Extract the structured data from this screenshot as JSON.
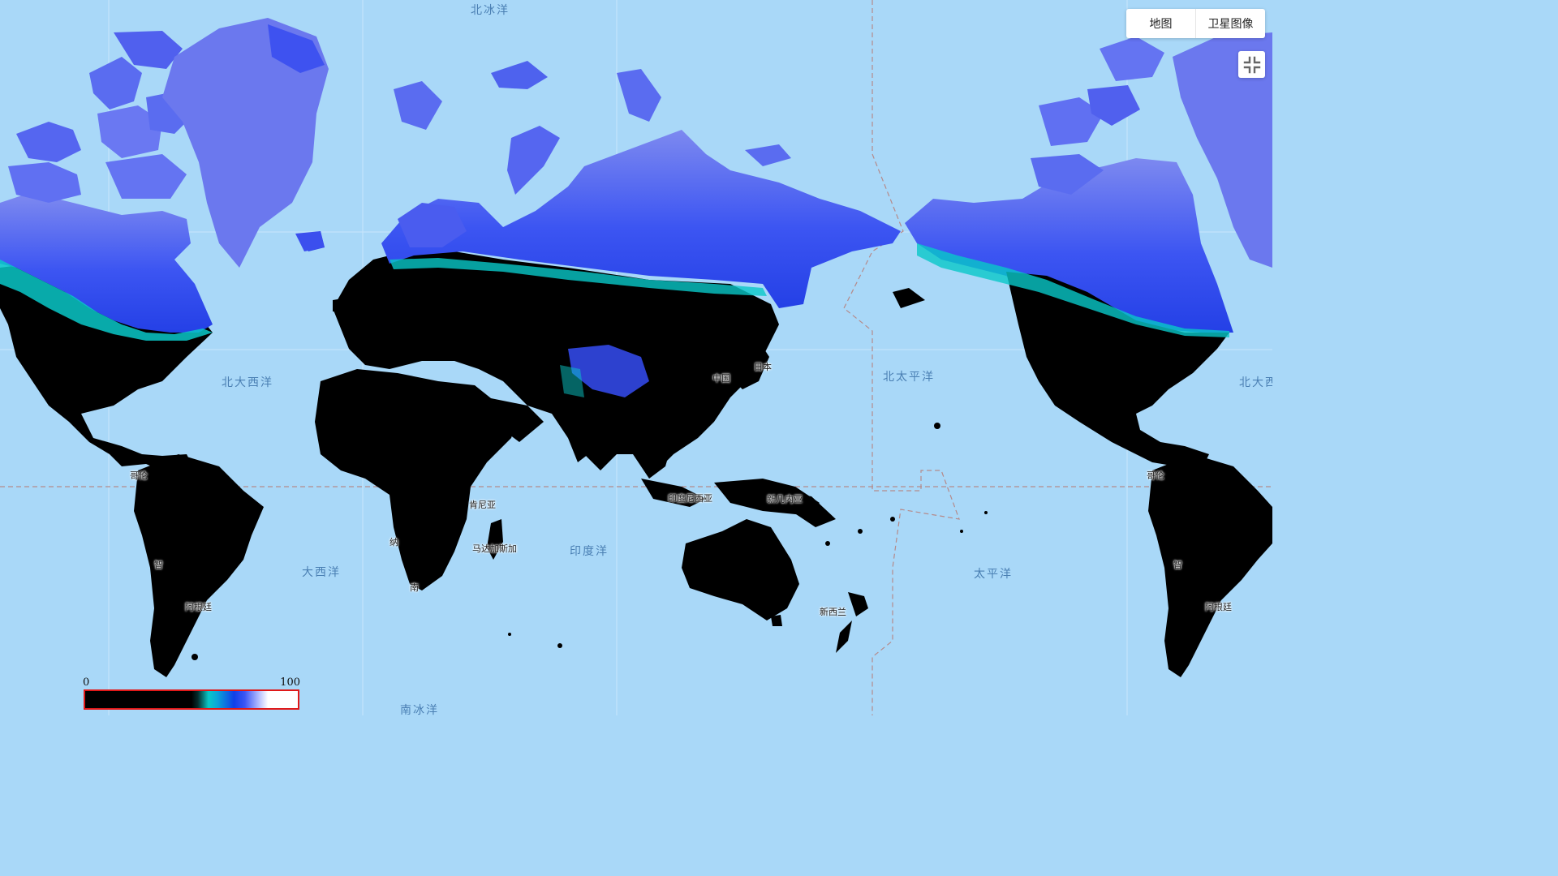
{
  "map_type": {
    "options": [
      "地图",
      "卫星图像"
    ],
    "selected": "地图"
  },
  "fullscreen": {
    "icon": "exit-fullscreen-icon"
  },
  "ocean_labels": {
    "arctic": "北冰洋",
    "north_atlantic": "北大西洋",
    "north_atlantic_repeat": "北大西",
    "north_pacific": "北太平洋",
    "atlantic": "大西洋",
    "indian": "印度洋",
    "pacific": "太平洋",
    "southern": "南冰洋"
  },
  "place_labels": {
    "japan": "日本",
    "colombia": "哥伦",
    "colombia_repeat": "哥伦",
    "indonesia": "印度尼西亚",
    "png": "新几内亚",
    "kenya": "肯尼亚",
    "namibia": "纳",
    "madagascar": "马达加斯加",
    "new_zealand": "新西兰",
    "chile": "智",
    "chile_repeat": "智",
    "argentina": "阿根廷",
    "argentina_repeat": "阿根廷",
    "south_africa": "南",
    "china": "中国"
  },
  "legend": {
    "min": "0",
    "max": "100",
    "colors": [
      "#000000",
      "#09c8c8",
      "#1040e8",
      "#b9c3ff",
      "#ffffff"
    ],
    "border_color": "#e01818"
  },
  "colors": {
    "ocean": "#a9d8f8",
    "land": "#000000",
    "snow": "#3a55f5",
    "snow_light": "#8f9cf5",
    "snow_edge": "#09c8c8",
    "boundary": "#b58a8a"
  }
}
